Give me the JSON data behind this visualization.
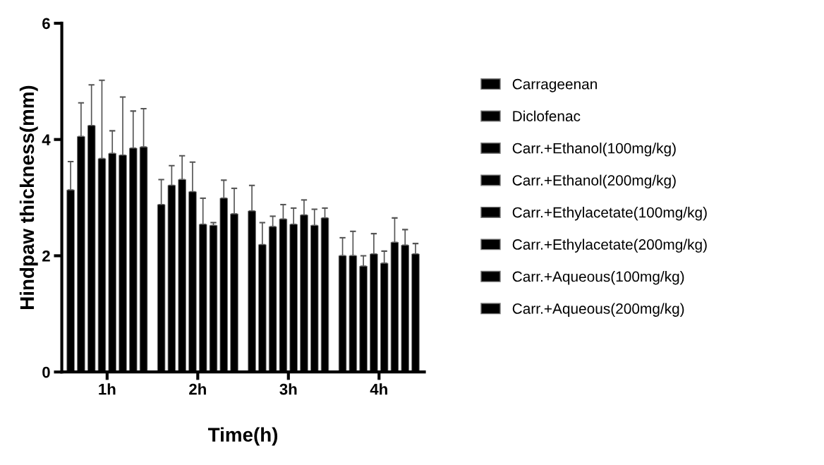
{
  "chart_data": {
    "type": "bar",
    "xlabel": "Time(h)",
    "ylabel": "Hindpaw thickness(mm)",
    "categories": [
      "1h",
      "2h",
      "3h",
      "4h"
    ],
    "ylim": [
      0,
      6
    ],
    "yticks": [
      0,
      2,
      4,
      6
    ],
    "grid": false,
    "legend": "right",
    "series": [
      {
        "name": "Carrageenan",
        "color": "#000000",
        "values": [
          3.13,
          2.88,
          2.77,
          2.0
        ],
        "errors": [
          [
            3.13,
            3.62
          ],
          [
            2.88,
            3.31
          ],
          [
            2.77,
            3.21
          ],
          [
            2.0,
            2.31
          ]
        ]
      },
      {
        "name": "Diclofenac",
        "color": "#000000",
        "values": [
          4.05,
          3.21,
          2.19,
          2.0
        ],
        "errors": [
          [
            4.05,
            4.63
          ],
          [
            3.21,
            3.55
          ],
          [
            2.19,
            2.57
          ],
          [
            2.0,
            2.42
          ]
        ]
      },
      {
        "name": "Carr.+Ethanol(100mg/kg)",
        "color": "#000000",
        "values": [
          4.24,
          3.31,
          2.5,
          1.82
        ],
        "errors": [
          [
            4.24,
            4.94
          ],
          [
            3.31,
            3.72
          ],
          [
            2.5,
            2.68
          ],
          [
            1.82,
            2.0
          ]
        ]
      },
      {
        "name": "Carr.+Ethanol(200mg/kg)",
        "color": "#000000",
        "values": [
          3.67,
          3.1,
          2.63,
          2.03
        ],
        "errors": [
          [
            3.67,
            5.02
          ],
          [
            3.1,
            3.61
          ],
          [
            2.63,
            2.88
          ],
          [
            2.03,
            2.38
          ]
        ]
      },
      {
        "name": "Carr.+Ethylacetate(100mg/kg)",
        "color": "#000000",
        "values": [
          3.76,
          2.54,
          2.54,
          1.87
        ],
        "errors": [
          [
            3.76,
            4.15
          ],
          [
            2.54,
            2.99
          ],
          [
            2.54,
            2.82
          ],
          [
            1.87,
            2.08
          ]
        ]
      },
      {
        "name": "Carr.+Ethylacetate(200mg/kg)",
        "color": "#000000",
        "values": [
          3.73,
          2.52,
          2.7,
          2.23
        ],
        "errors": [
          [
            3.73,
            4.73
          ],
          [
            2.52,
            2.57
          ],
          [
            2.7,
            2.96
          ],
          [
            2.23,
            2.65
          ]
        ]
      },
      {
        "name": "Carr.+Aqueous(100mg/kg)",
        "color": "#000000",
        "values": [
          3.85,
          2.99,
          2.52,
          2.18
        ],
        "errors": [
          [
            3.85,
            4.49
          ],
          [
            2.99,
            3.3
          ],
          [
            2.52,
            2.8
          ],
          [
            2.18,
            2.45
          ]
        ]
      },
      {
        "name": "Carr.+Aqueous(200mg/kg)",
        "color": "#000000",
        "values": [
          3.87,
          2.72,
          2.65,
          2.03
        ],
        "errors": [
          [
            3.87,
            4.53
          ],
          [
            2.72,
            3.16
          ],
          [
            2.65,
            2.82
          ],
          [
            2.03,
            2.21
          ]
        ]
      }
    ]
  }
}
